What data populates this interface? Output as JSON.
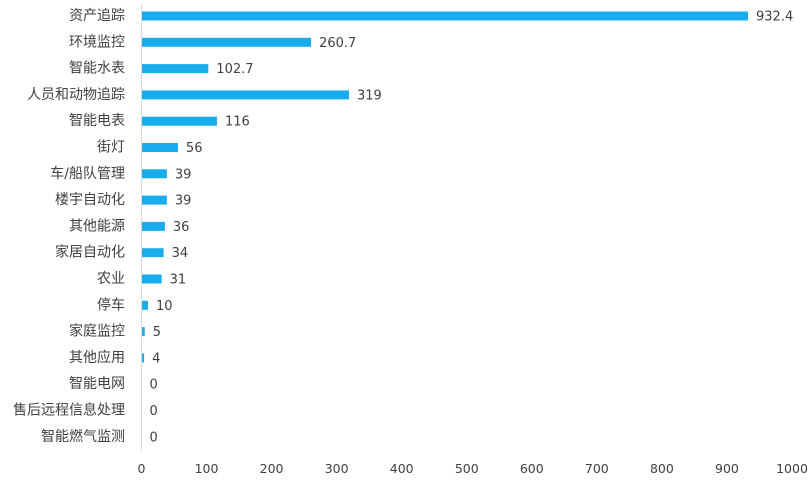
{
  "chart_data": {
    "type": "bar",
    "orientation": "horizontal",
    "categories": [
      "资产追踪",
      "环境监控",
      "智能水表",
      "人员和动物追踪",
      "智能电表",
      "街灯",
      "车/船队管理",
      "楼宇自动化",
      "其他能源",
      "家居自动化",
      "农业",
      "停车",
      "家庭监控",
      "其他应用",
      "智能电网",
      "售后远程信息处理",
      "智能燃气监测"
    ],
    "values": [
      932.4,
      260.7,
      102.7,
      319,
      116,
      56,
      39,
      39,
      36,
      34,
      31,
      10,
      5,
      4,
      0,
      0,
      0
    ],
    "value_labels": [
      "932.4",
      "260.7",
      "102.7",
      "319",
      "116",
      "56",
      "39",
      "39",
      "36",
      "34",
      "31",
      "10",
      "5",
      "4",
      "0",
      "0",
      "0"
    ],
    "xlim": [
      0,
      1000
    ],
    "xticks": [
      0,
      100,
      200,
      300,
      400,
      500,
      600,
      700,
      800,
      900,
      1000
    ],
    "xtick_labels": [
      "0",
      "100",
      "200",
      "300",
      "400",
      "500",
      "600",
      "700",
      "800",
      "900",
      "1000"
    ],
    "grid": false,
    "legend": "none",
    "bar_color": "#1AADEE",
    "axis_color": "#D9D9D9",
    "text_color": "#404040"
  }
}
